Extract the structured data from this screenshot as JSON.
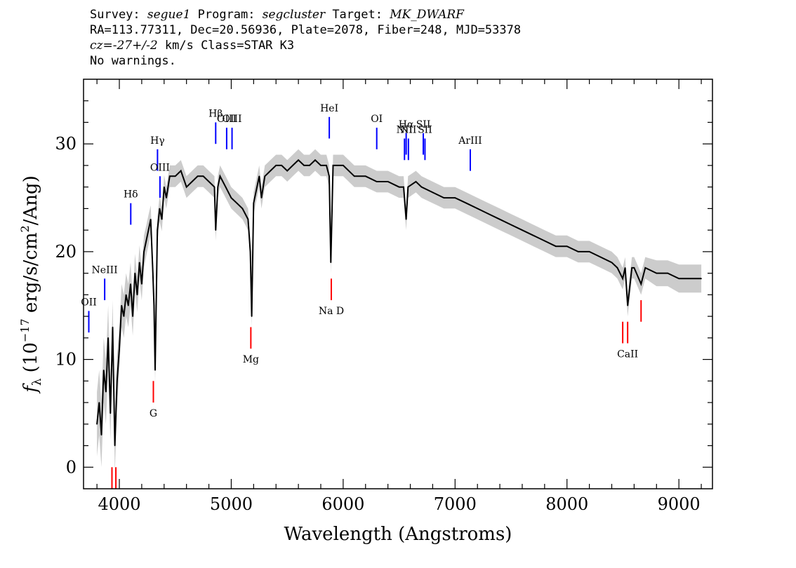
{
  "header": {
    "line1": {
      "survey_label": "Survey: ",
      "survey": "segue1",
      "program_label": " Program: ",
      "program": "segcluster",
      "target_label": " Target: ",
      "target": "MK_DWARF"
    },
    "line2": "RA=113.77311, Dec=20.56936, Plate=2078, Fiber=248, MJD=53378",
    "line3": {
      "cz_label": "cz=",
      "cz_value": "-27+/-2",
      "rest": " km/s Class=STAR K3"
    },
    "line4": "No warnings."
  },
  "colors": {
    "flux": "#000000",
    "error_band": "#bfbfbf",
    "emission_marker": "#0000ff",
    "absorption_marker": "#ff0000",
    "axes": "#000000"
  },
  "chart_data": {
    "type": "line",
    "title": "",
    "xlabel": "Wavelength (Angstroms)",
    "ylabel": "f_λ (10^-17 erg/s/cm²/Ang)",
    "ylabel_parts": {
      "f": "f",
      "lambda": "λ",
      "pre": "(10",
      "exp1": "−17",
      "mid": " erg/s/cm",
      "exp2": "2",
      "post": "/Ang)"
    },
    "xlim": [
      3680,
      9300
    ],
    "ylim": [
      -2,
      36
    ],
    "xticks": [
      4000,
      5000,
      6000,
      7000,
      8000,
      9000
    ],
    "xtick_labels": [
      "4000",
      "5000",
      "6000",
      "7000",
      "8000",
      "9000"
    ],
    "yticks": [
      0,
      10,
      20,
      30
    ],
    "ytick_labels": [
      "0",
      "10",
      "20",
      "30"
    ],
    "grid": false,
    "series": [
      {
        "x": [
          3800,
          3820,
          3840,
          3860,
          3880,
          3900,
          3920,
          3940,
          3960,
          3980,
          4000,
          4020,
          4040,
          4060,
          4080,
          4100,
          4120,
          4140,
          4160,
          4180,
          4200,
          4220,
          4240,
          4260,
          4280,
          4300,
          4310,
          4320,
          4340,
          4360,
          4380,
          4400,
          4420,
          4450,
          4500,
          4550,
          4600,
          4650,
          4700,
          4750,
          4800,
          4850,
          4861,
          4880,
          4900,
          4950,
          5000,
          5050,
          5100,
          5150,
          5170,
          5183,
          5200,
          5250,
          5270,
          5300,
          5350,
          5400,
          5450,
          5500,
          5550,
          5600,
          5650,
          5700,
          5750,
          5800,
          5850,
          5875,
          5890,
          5910,
          5950,
          6000,
          6100,
          6200,
          6300,
          6400,
          6500,
          6540,
          6563,
          6580,
          6650,
          6700,
          6800,
          6900,
          7000,
          7100,
          7200,
          7300,
          7400,
          7500,
          7600,
          7700,
          7800,
          7900,
          8000,
          8100,
          8200,
          8300,
          8400,
          8450,
          8498,
          8520,
          8542,
          8580,
          8600,
          8662,
          8700,
          8800,
          8900,
          9000,
          9100,
          9200
        ],
        "values": [
          4,
          6,
          3,
          9,
          7,
          12,
          5,
          13,
          2,
          8,
          11,
          15,
          14,
          16,
          15,
          17,
          14,
          18,
          16,
          19,
          17,
          20,
          21,
          22,
          23,
          18,
          15,
          9,
          22,
          24,
          23,
          26,
          25,
          27,
          27,
          27.5,
          26,
          26.5,
          27,
          27,
          26.5,
          26,
          22,
          26,
          27,
          26,
          25,
          24.5,
          24,
          23,
          20,
          14,
          24.5,
          27,
          25,
          27,
          27.5,
          28,
          28,
          27.5,
          28,
          28.5,
          28,
          28,
          28.5,
          28,
          28,
          27,
          19,
          28,
          28,
          28,
          27,
          27,
          26.5,
          26.5,
          26,
          26,
          23,
          26,
          26.5,
          26,
          25.5,
          25,
          25,
          24.5,
          24,
          23.5,
          23,
          22.5,
          22,
          21.5,
          21,
          20.5,
          20.5,
          20,
          20,
          19.5,
          19,
          18.5,
          17.5,
          18.5,
          15,
          18.5,
          18.5,
          17,
          18.5,
          18,
          18,
          17.5,
          17.5,
          17.5
        ],
        "err": [
          3,
          3,
          3,
          3,
          3,
          3,
          2.5,
          2.5,
          2.5,
          2.5,
          2,
          2,
          2,
          2,
          2,
          2,
          1.8,
          1.8,
          1.6,
          1.6,
          1.5,
          1.5,
          1.4,
          1.4,
          1.3,
          1.3,
          1.2,
          1.2,
          1.2,
          1.2,
          1.1,
          1.1,
          1,
          1,
          1,
          1,
          1,
          1,
          1,
          1,
          1,
          1,
          1,
          1,
          1,
          1,
          1,
          1,
          1,
          1,
          1,
          1,
          1,
          1,
          1,
          1,
          1,
          1,
          1,
          1,
          1,
          1,
          1,
          1,
          1,
          1,
          1,
          1,
          1,
          1,
          1,
          1,
          1,
          1,
          1,
          1,
          1,
          1,
          1,
          1,
          1,
          1,
          1,
          1,
          1,
          1,
          1,
          1,
          1,
          1,
          1,
          1,
          1,
          1,
          1,
          1,
          1,
          1,
          1,
          1,
          1,
          1,
          1,
          1,
          1,
          1,
          1,
          1.2,
          1.2,
          1.3,
          1.3,
          1.3
        ]
      }
    ],
    "emission_lines": [
      {
        "label": "OII",
        "label_html": "OII",
        "x": 3727,
        "y1": 12.5,
        "y2": 14.5
      },
      {
        "label": "NeIII",
        "x": 3869,
        "y1": 15.5,
        "y2": 17.5
      },
      {
        "label": "Hδ",
        "x": 4102,
        "y1": 22.5,
        "y2": 24.5
      },
      {
        "label": "Hγ",
        "x": 4341,
        "y1": 27.5,
        "y2": 29.5
      },
      {
        "label": "OIII",
        "x": 4363,
        "y1": 25,
        "y2": 27
      },
      {
        "label": "Hβ",
        "x": 4861,
        "y1": 30,
        "y2": 32
      },
      {
        "label": "OIII",
        "x": 4959,
        "y1": 29.5,
        "y2": 31.5
      },
      {
        "label": "OIII",
        "x": 5007,
        "y1": 29.5,
        "y2": 31.5
      },
      {
        "label": "HeI",
        "x": 5876,
        "y1": 30.5,
        "y2": 32.5
      },
      {
        "label": "OI",
        "x": 6300,
        "y1": 29.5,
        "y2": 31.5
      },
      {
        "label": "NII",
        "x": 6548,
        "y1": 28.5,
        "y2": 30.5
      },
      {
        "label": "Hα",
        "x": 6563,
        "y1": 29,
        "y2": 31
      },
      {
        "label": "NII",
        "x": 6583,
        "y1": 28.5,
        "y2": 30.5
      },
      {
        "label": "SII",
        "x": 6716,
        "y1": 29,
        "y2": 31
      },
      {
        "label": "SII",
        "x": 6731,
        "y1": 28.5,
        "y2": 30.5
      },
      {
        "label": "ArIII",
        "x": 7136,
        "y1": 27.5,
        "y2": 29.5
      }
    ],
    "emission_label_offsets": [
      0,
      0,
      0,
      0,
      0,
      0,
      0,
      0,
      0,
      0,
      0,
      0,
      0,
      0,
      0,
      0
    ],
    "absorption_lines": [
      {
        "label": "",
        "x": 3934,
        "y1": -2,
        "y2": 0
      },
      {
        "label": "",
        "x": 3969,
        "y1": -2,
        "y2": 0
      },
      {
        "label": "G",
        "x": 4304,
        "y1": 6,
        "y2": 8
      },
      {
        "label": "Mg",
        "x": 5175,
        "y1": 11,
        "y2": 13
      },
      {
        "label": "Na D",
        "x": 5894,
        "y1": 15.5,
        "y2": 17.5
      },
      {
        "label": "",
        "x": 8498,
        "y1": 11.5,
        "y2": 13.5
      },
      {
        "label": "CaII",
        "x": 8542,
        "y1": 11.5,
        "y2": 13.5
      },
      {
        "label": "",
        "x": 8662,
        "y1": 13.5,
        "y2": 15.5
      }
    ]
  }
}
